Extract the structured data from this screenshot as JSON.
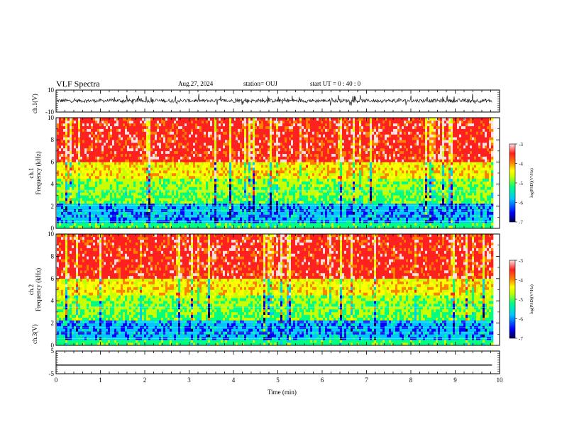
{
  "header": {
    "title": "VLF Spectra",
    "date": "Aug.27, 2024",
    "station": "station= OUJ",
    "start_ut": "start  UT =   0  : 40 : 0"
  },
  "colorbar_ticks": [
    "-3",
    "-4",
    "-5",
    "-6",
    "-7"
  ],
  "colorbar_label": "log(PSD)(V²/Hz)",
  "colormap": [
    "#00004a",
    "#0000ff",
    "#00c8ff",
    "#00ff80",
    "#c8ff00",
    "#ffff00",
    "#ff8000",
    "#ff2020",
    "#ffe0e0"
  ],
  "chart_data": [
    {
      "type": "line",
      "panel": "waveform-ch1",
      "ylabel": "ch.1(V)",
      "ylim": [
        -10,
        10
      ],
      "yticks": [
        "10",
        "-10"
      ],
      "description_level": 3,
      "series": [
        {
          "values_range": [
            -4,
            6
          ]
        }
      ]
    },
    {
      "type": "heatmap",
      "panel": "spectrogram-ch1",
      "ylabel": "ch.1\nFrequency (kHz)",
      "ylim": [
        0,
        10
      ],
      "yticks": [
        "0",
        "2",
        "4",
        "6",
        "8",
        "10"
      ],
      "zlim": [
        -7,
        -3
      ],
      "zlabel": "log(PSD)(V²/Hz)"
    },
    {
      "type": "heatmap",
      "panel": "spectrogram-ch2",
      "ylabel": "ch.2\nFrequency (kHz)",
      "ylim": [
        0,
        10
      ],
      "yticks": [
        "0",
        "2",
        "4",
        "6",
        "8",
        "10"
      ],
      "zlim": [
        -7,
        -3
      ],
      "zlabel": "log(PSD)(V²/Hz)"
    },
    {
      "type": "line",
      "panel": "waveform-ch3",
      "ylabel": "ch.3(V)",
      "ylim": [
        -5,
        5
      ],
      "yticks": [
        "5",
        "-5"
      ],
      "series": [
        {
          "values": [
            -1.2
          ]
        }
      ]
    }
  ],
  "xaxis": {
    "label": "Time (min)",
    "ticks": [
      "0",
      "1",
      "2",
      "3",
      "4",
      "5",
      "6",
      "7",
      "8",
      "9",
      "10"
    ],
    "xlim": [
      0,
      10
    ],
    "data_end": 9.83
  }
}
